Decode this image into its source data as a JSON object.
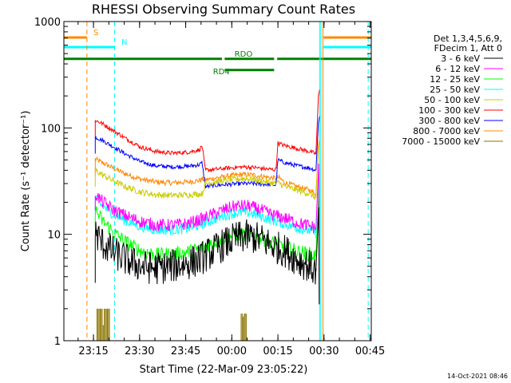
{
  "chart_data": {
    "type": "line",
    "title": "RHESSI Observing Summary Count Rates",
    "xlabel": "Start Time (22-Mar-09 23:05:22)",
    "ylabel": "Count Rate (s⁻¹ detector⁻¹)",
    "x_unit": "minutes after 23:05:22",
    "xlim": [
      0,
      100
    ],
    "ylim": [
      1,
      1000
    ],
    "yscale": "log",
    "x_ticks": [
      {
        "value": 9.63,
        "label": "23:15"
      },
      {
        "value": 24.63,
        "label": "23:30"
      },
      {
        "value": 39.63,
        "label": "23:45"
      },
      {
        "value": 54.63,
        "label": "00:00"
      },
      {
        "value": 69.63,
        "label": "00:15"
      },
      {
        "value": 84.63,
        "label": "00:30"
      },
      {
        "value": 99.63,
        "label": "00:45"
      }
    ],
    "y_ticks": [
      {
        "value": 1,
        "label": "1"
      },
      {
        "value": 10,
        "label": "10"
      },
      {
        "value": 100,
        "label": "100"
      },
      {
        "value": 1000,
        "label": "1000"
      }
    ],
    "legend": {
      "position": "right",
      "header": [
        "Det 1,3,4,5,6,9,",
        "FDecim 1, Att 0"
      ]
    },
    "series": [
      {
        "name": "3 - 6 keV",
        "color": "#000000",
        "jitter": 0.16,
        "points": [
          [
            10.2,
            10.5
          ],
          [
            12,
            8.5
          ],
          [
            16,
            6.8
          ],
          [
            20,
            5.8
          ],
          [
            25,
            5.0
          ],
          [
            30,
            4.8
          ],
          [
            35,
            5.0
          ],
          [
            40,
            5.3
          ],
          [
            44,
            5.8
          ],
          [
            48,
            6.8
          ],
          [
            52,
            8.0
          ],
          [
            56,
            9.2
          ],
          [
            60,
            9.6
          ],
          [
            64,
            9.0
          ],
          [
            68,
            7.8
          ],
          [
            72,
            7.0
          ],
          [
            76,
            5.8
          ],
          [
            80,
            5.0
          ],
          [
            82,
            4.5
          ]
        ]
      },
      {
        "name": "6 - 12 keV",
        "color": "#ff00ff",
        "jitter": 0.06,
        "points": [
          [
            10.2,
            24
          ],
          [
            12,
            21
          ],
          [
            16,
            17
          ],
          [
            20,
            15
          ],
          [
            25,
            13.2
          ],
          [
            30,
            12.2
          ],
          [
            35,
            12.2
          ],
          [
            40,
            12.6
          ],
          [
            44,
            13.6
          ],
          [
            48,
            15.2
          ],
          [
            52,
            17
          ],
          [
            56,
            18.5
          ],
          [
            60,
            18.5
          ],
          [
            64,
            17
          ],
          [
            68,
            15.2
          ],
          [
            72,
            14.2
          ],
          [
            76,
            12.8
          ],
          [
            80,
            12
          ],
          [
            82,
            11.5
          ]
        ]
      },
      {
        "name": "12 - 25 keV",
        "color": "#00ff00",
        "jitter": 0.07,
        "points": [
          [
            10.2,
            17
          ],
          [
            12,
            14
          ],
          [
            16,
            10.5
          ],
          [
            20,
            8.5
          ],
          [
            25,
            7.0
          ],
          [
            30,
            6.4
          ],
          [
            35,
            6.5
          ],
          [
            40,
            6.8
          ],
          [
            44,
            7.3
          ],
          [
            48,
            8.2
          ],
          [
            52,
            9.2
          ],
          [
            56,
            10.0
          ],
          [
            60,
            10.0
          ],
          [
            64,
            9.3
          ],
          [
            68,
            8.3
          ],
          [
            72,
            7.6
          ],
          [
            76,
            6.9
          ],
          [
            80,
            6.5
          ],
          [
            82,
            6.2
          ]
        ]
      },
      {
        "name": "25 - 50 keV",
        "color": "#00ffff",
        "jitter": 0.05,
        "points": [
          [
            10.2,
            22
          ],
          [
            12,
            19
          ],
          [
            16,
            15.5
          ],
          [
            20,
            13.5
          ],
          [
            25,
            11.8
          ],
          [
            30,
            11.0
          ],
          [
            35,
            11.0
          ],
          [
            40,
            11.3
          ],
          [
            44,
            12.2
          ],
          [
            48,
            13.5
          ],
          [
            52,
            15
          ],
          [
            56,
            16
          ],
          [
            60,
            16
          ],
          [
            64,
            14.8
          ],
          [
            68,
            13.5
          ],
          [
            72,
            12.5
          ],
          [
            76,
            11.5
          ],
          [
            80,
            10.8
          ],
          [
            82,
            10.3
          ]
        ]
      },
      {
        "name": "50 - 100 keV",
        "color": "#cccc00",
        "jitter": 0.03,
        "points": [
          [
            10.2,
            40
          ],
          [
            12,
            37
          ],
          [
            16,
            32
          ],
          [
            20,
            28
          ],
          [
            25,
            25
          ],
          [
            30,
            23.5
          ],
          [
            35,
            23.2
          ],
          [
            40,
            23.5
          ],
          [
            44,
            24
          ],
          [
            45,
            24
          ],
          [
            46,
            30
          ],
          [
            50,
            31.5
          ],
          [
            54,
            32.5
          ],
          [
            58,
            33.5
          ],
          [
            62,
            33
          ],
          [
            66,
            31
          ],
          [
            69,
            30
          ],
          [
            70,
            30.5
          ],
          [
            72,
            28
          ],
          [
            76,
            26
          ],
          [
            80,
            24
          ],
          [
            82,
            22
          ]
        ]
      },
      {
        "name": "100 - 300 keV",
        "color": "#ff0000",
        "jitter": 0.02,
        "points": [
          [
            10.2,
            118
          ],
          [
            12,
            112
          ],
          [
            16,
            95
          ],
          [
            20,
            80
          ],
          [
            25,
            66
          ],
          [
            30,
            60
          ],
          [
            35,
            58
          ],
          [
            40,
            59
          ],
          [
            44,
            62
          ],
          [
            45,
            68
          ],
          [
            46,
            40
          ],
          [
            50,
            41
          ],
          [
            54,
            42
          ],
          [
            58,
            43
          ],
          [
            62,
            42.5
          ],
          [
            66,
            41
          ],
          [
            69,
            40.5
          ],
          [
            69.6,
            72
          ],
          [
            72,
            68
          ],
          [
            76,
            64
          ],
          [
            80,
            60
          ],
          [
            82,
            57
          ]
        ]
      },
      {
        "name": "300 - 800 keV",
        "color": "#0000ff",
        "jitter": 0.02,
        "points": [
          [
            10.2,
            82
          ],
          [
            12,
            78
          ],
          [
            16,
            67
          ],
          [
            20,
            57
          ],
          [
            25,
            48
          ],
          [
            30,
            44
          ],
          [
            35,
            43
          ],
          [
            40,
            43.5
          ],
          [
            44,
            45
          ],
          [
            45,
            47
          ],
          [
            46,
            28
          ],
          [
            50,
            29
          ],
          [
            54,
            29.5
          ],
          [
            58,
            30
          ],
          [
            62,
            30
          ],
          [
            66,
            29.5
          ],
          [
            69,
            29
          ],
          [
            69.6,
            50
          ],
          [
            72,
            47
          ],
          [
            76,
            44
          ],
          [
            80,
            42
          ],
          [
            82,
            40
          ]
        ]
      },
      {
        "name": "800 - 7000 keV",
        "color": "#ff8800",
        "jitter": 0.025,
        "points": [
          [
            10.2,
            51
          ],
          [
            12,
            48
          ],
          [
            16,
            42
          ],
          [
            20,
            37
          ],
          [
            25,
            33
          ],
          [
            30,
            31
          ],
          [
            35,
            30.5
          ],
          [
            40,
            31
          ],
          [
            44,
            32
          ],
          [
            45,
            33
          ],
          [
            46,
            32.5
          ],
          [
            50,
            34
          ],
          [
            54,
            35.5
          ],
          [
            58,
            36.5
          ],
          [
            62,
            36
          ],
          [
            66,
            34.5
          ],
          [
            69,
            33.5
          ],
          [
            70,
            34
          ],
          [
            72,
            30.5
          ],
          [
            76,
            28
          ],
          [
            80,
            26
          ],
          [
            82,
            24
          ]
        ]
      },
      {
        "name": "7000 - 15000 keV",
        "color": "#8b7300",
        "jitter": 0.0,
        "points": [
          [
            10.2,
            1
          ],
          [
            82,
            1
          ]
        ]
      }
    ],
    "bursts": [
      {
        "series": "7000 - 15000 keV",
        "from": 10.6,
        "to": 15.0,
        "peak": 2.0
      },
      {
        "series": "7000 - 15000 keV",
        "from": 57.5,
        "to": 59.5,
        "peak": 1.8
      }
    ],
    "flags": [
      {
        "label": "S",
        "color": "#ff8800",
        "from": 0,
        "to": 7.5,
        "y_frac": 0.05
      },
      {
        "label": "N",
        "color": "#00ffff",
        "from": 0,
        "to": 16.5,
        "y_frac": 0.08
      },
      {
        "label": "S",
        "color": "#ff8800",
        "from": 84.5,
        "to": 100,
        "y_frac": 0.05
      },
      {
        "label": "N",
        "color": "#00ffff",
        "from": 84.5,
        "to": 100,
        "y_frac": 0.08
      },
      {
        "label": "RDO",
        "color": "#008000",
        "from": 0,
        "to": 100,
        "y_frac": 0.117,
        "gaps": [
          [
            51.4,
            52.3
          ],
          [
            68.4,
            69.4
          ]
        ]
      },
      {
        "label": "RD4",
        "color": "#008000",
        "from": 52.3,
        "to": 68.4,
        "y_frac": 0.152
      }
    ],
    "events": [
      {
        "type": "saa",
        "x": 7.5,
        "color": "#ff8800",
        "style": "dashed"
      },
      {
        "type": "night",
        "x": 16.5,
        "color": "#00ffff",
        "style": "dashed"
      },
      {
        "type": "night",
        "x": 83.2,
        "color": "#00ffff",
        "style": "solid"
      },
      {
        "type": "saa",
        "x": 84.3,
        "color": "#ff8800",
        "style": "solid"
      },
      {
        "type": "night",
        "x": 99.0,
        "color": "#00ffff",
        "style": "dashed"
      }
    ],
    "footer_stamp": "14-Oct-2021 08:46",
    "grid": false
  }
}
